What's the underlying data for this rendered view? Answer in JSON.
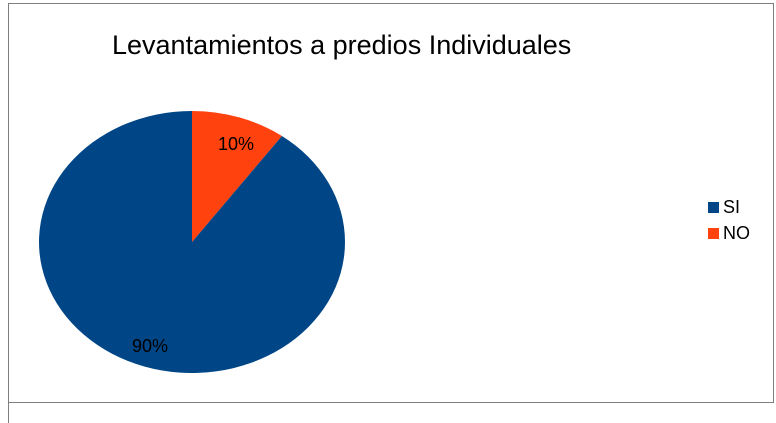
{
  "chart_data": {
    "type": "pie",
    "title": "Levantamientos a predios Individuales",
    "categories": [
      "SI",
      "NO"
    ],
    "values": [
      90,
      10
    ],
    "data_labels": [
      "90%",
      "10%"
    ],
    "colors": [
      "#004586",
      "#ff420e"
    ],
    "legend_position": "right",
    "start_angle": "12 o'clock",
    "direction": "counter-clockwise for SI"
  }
}
